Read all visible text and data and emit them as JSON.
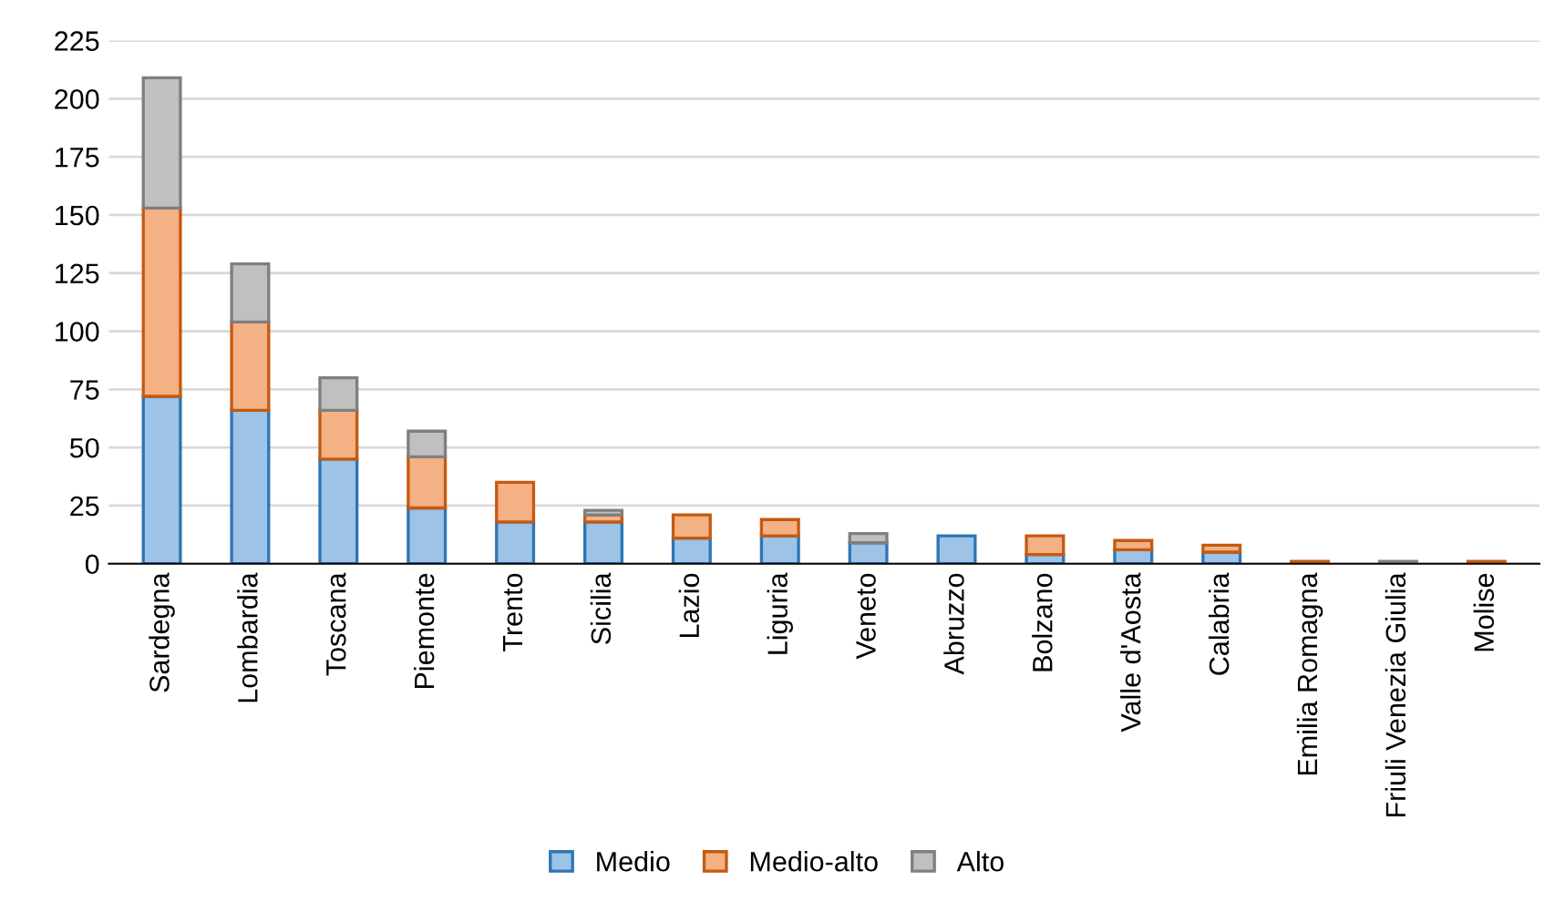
{
  "chart_data": {
    "type": "bar",
    "stacked": true,
    "categories": [
      "Sardegna",
      "Lombardia",
      "Toscana",
      "Piemonte",
      "Trento",
      "Sicilia",
      "Lazio",
      "Liguria",
      "Veneto",
      "Abruzzo",
      "Bolzano",
      "Valle d'Aosta",
      "Calabria",
      "Emilia Romagna",
      "Friuli Venezia Giulia",
      "Molise"
    ],
    "series": [
      {
        "name": "Medio",
        "color": "#9dc3e6",
        "values": [
          72,
          66,
          45,
          24,
          18,
          18,
          11,
          12,
          9,
          12,
          4,
          6,
          5,
          0,
          0,
          0
        ]
      },
      {
        "name": "Medio-alto",
        "color": "#f4b183",
        "values": [
          81,
          38,
          21,
          22,
          17,
          3,
          10,
          7,
          0,
          0,
          8,
          4,
          3,
          1,
          0,
          1
        ]
      },
      {
        "name": "Alto",
        "color": "#c0c0c0",
        "values": [
          56,
          25,
          14,
          11,
          0,
          2,
          0,
          0,
          4,
          0,
          0,
          0,
          0,
          0,
          1,
          0
        ]
      }
    ],
    "ylim": [
      0,
      225
    ],
    "yticks": [
      0,
      25,
      50,
      75,
      100,
      125,
      150,
      175,
      200,
      225
    ],
    "grid": "y",
    "legend": "bottom"
  }
}
